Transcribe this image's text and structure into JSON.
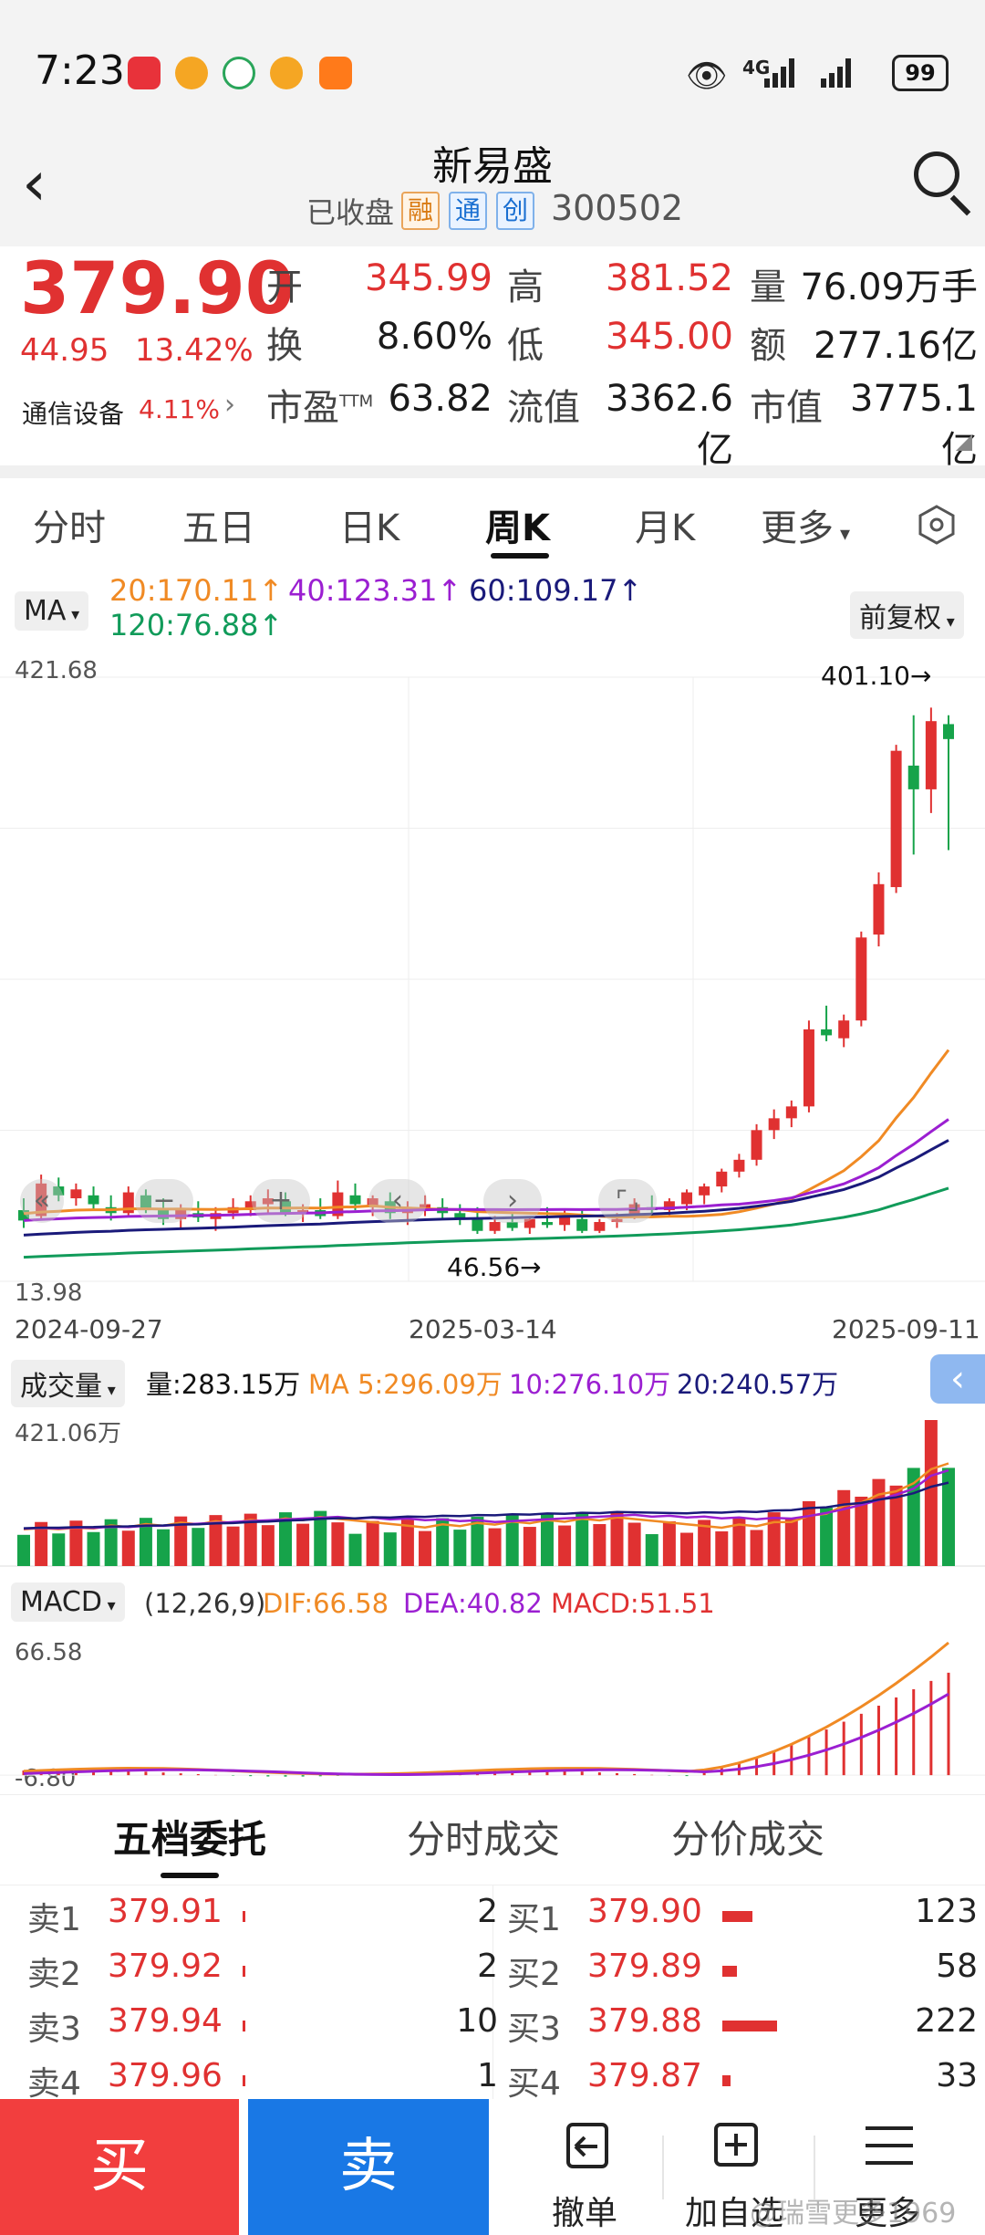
{
  "status_bar": {
    "time": "7:23",
    "battery": "99",
    "network": "4G",
    "icons": [
      "huawei-app-icon",
      "weibo-icon",
      "browser-icon",
      "weibo-icon-2",
      "orange-app-icon",
      "eye-icon",
      "signal-icon",
      "battery-icon"
    ]
  },
  "header": {
    "name": "新易盛",
    "market_status": "已收盘",
    "tags": [
      "融",
      "通",
      "创"
    ],
    "code": "300502"
  },
  "quote": {
    "price": "379.90",
    "change": "44.95",
    "change_pct": "13.42%",
    "industry": "通信设备",
    "industry_pct": "4.11%",
    "open_label": "开",
    "open": "345.99",
    "high_label": "高",
    "high": "381.52",
    "volume_label": "量",
    "volume": "76.09万手",
    "turnover_label": "换",
    "turnover": "8.60%",
    "low_label": "低",
    "low": "345.00",
    "amount_label": "额",
    "amount": "277.16亿",
    "pe_label": "市盈",
    "pe_sup": "TTM",
    "pe": "63.82",
    "float_cap_label": "流值",
    "float_cap": "3362.6亿",
    "market_cap_label": "市值",
    "market_cap": "3775.1亿"
  },
  "chart_tabs": [
    "分时",
    "五日",
    "日K",
    "周K",
    "月K",
    "更多"
  ],
  "active_tab": "周K",
  "ma_panel": {
    "selector": "MA",
    "ma20": "20:170.11",
    "ma40": "40:123.31",
    "ma60": "60:109.17",
    "ma120": "120:76.88",
    "adjust": "前复权"
  },
  "kline_axis": {
    "y_top": "421.68",
    "y_bottom": "13.98",
    "max_label": "401.10",
    "min_label": "46.56",
    "dates": [
      "2024-09-27",
      "2025-03-14",
      "2025-09-11"
    ]
  },
  "volume_panel": {
    "selector": "成交量",
    "vol": "量:283.15万",
    "ma5": "MA 5:296.09万",
    "ma10": "10:276.10万",
    "ma20": "20:240.57万",
    "y_top": "421.06万"
  },
  "macd_panel": {
    "selector": "MACD",
    "params": "(12,26,9)",
    "dif": "DIF:66.58",
    "dea": "DEA:40.82",
    "macd": "MACD:51.51",
    "y_top": "66.58",
    "y_bottom": "-6.80"
  },
  "chart_data": {
    "type": "candlestick",
    "frequency": "weekly",
    "x_range": [
      "2024-09-27",
      "2025-09-11"
    ],
    "ylim": [
      13.98,
      421.68
    ],
    "ohlc": [
      [
        62,
        70,
        50,
        55
      ],
      [
        58,
        86,
        55,
        80
      ],
      [
        78,
        84,
        68,
        72
      ],
      [
        70,
        80,
        65,
        76
      ],
      [
        72,
        78,
        62,
        66
      ],
      [
        64,
        72,
        55,
        60
      ],
      [
        60,
        78,
        58,
        74
      ],
      [
        72,
        76,
        60,
        62
      ],
      [
        62,
        70,
        52,
        56
      ],
      [
        56,
        66,
        50,
        62
      ],
      [
        60,
        68,
        54,
        57
      ],
      [
        56,
        64,
        48,
        60
      ],
      [
        60,
        70,
        56,
        64
      ],
      [
        62,
        72,
        58,
        68
      ],
      [
        66,
        76,
        60,
        70
      ],
      [
        68,
        74,
        58,
        60
      ],
      [
        60,
        66,
        54,
        62
      ],
      [
        62,
        70,
        56,
        58
      ],
      [
        58,
        82,
        56,
        74
      ],
      [
        72,
        80,
        62,
        66
      ],
      [
        64,
        72,
        58,
        70
      ],
      [
        68,
        74,
        56,
        60
      ],
      [
        60,
        68,
        52,
        64
      ],
      [
        62,
        72,
        58,
        66
      ],
      [
        64,
        70,
        56,
        60
      ],
      [
        60,
        66,
        52,
        56
      ],
      [
        56,
        64,
        46,
        48
      ],
      [
        48,
        58,
        46,
        54
      ],
      [
        54,
        60,
        48,
        50
      ],
      [
        50,
        58,
        46,
        56
      ],
      [
        54,
        64,
        50,
        52
      ],
      [
        52,
        62,
        48,
        58
      ],
      [
        56,
        62,
        46.56,
        48
      ],
      [
        48,
        56,
        46.56,
        54
      ],
      [
        54,
        60,
        50,
        56
      ],
      [
        58,
        70,
        56,
        66
      ],
      [
        64,
        72,
        58,
        62
      ],
      [
        62,
        70,
        58,
        68
      ],
      [
        66,
        76,
        62,
        74
      ],
      [
        72,
        80,
        66,
        78
      ],
      [
        78,
        90,
        74,
        88
      ],
      [
        88,
        100,
        84,
        96
      ],
      [
        96,
        120,
        92,
        116
      ],
      [
        116,
        130,
        110,
        124
      ],
      [
        124,
        136,
        118,
        132
      ],
      [
        132,
        190,
        128,
        184
      ],
      [
        184,
        200,
        176,
        180
      ],
      [
        178,
        194,
        172,
        190
      ],
      [
        190,
        250,
        186,
        246
      ],
      [
        248,
        290,
        240,
        282
      ],
      [
        280,
        376,
        276,
        372
      ],
      [
        362,
        396,
        302,
        346
      ],
      [
        346,
        401.1,
        330,
        392
      ],
      [
        390,
        396,
        305,
        379.9
      ]
    ],
    "ma_lines": {
      "ma20_last": 170.11,
      "ma40_last": 123.31,
      "ma60_last": 109.17,
      "ma120_last": 76.88
    },
    "volume": {
      "unit": "万",
      "ylim": [
        0,
        421.06
      ],
      "last": 283.15,
      "ma5_last": 296.09,
      "ma10_last": 276.1,
      "ma20_last": 240.57
    },
    "macd": {
      "params": "12,26,9",
      "ylim": [
        -6.8,
        66.58
      ],
      "dif_last": 66.58,
      "dea_last": 40.82,
      "macd_last": 51.51
    }
  },
  "order_tabs": [
    "五档委托",
    "分时成交",
    "分价成交"
  ],
  "asks": [
    {
      "label": "卖1",
      "price": "379.91",
      "qty": "2",
      "bar": 0.01
    },
    {
      "label": "卖2",
      "price": "379.92",
      "qty": "2",
      "bar": 0.01
    },
    {
      "label": "卖3",
      "price": "379.94",
      "qty": "10",
      "bar": 0.03
    },
    {
      "label": "卖4",
      "price": "379.96",
      "qty": "1",
      "bar": 0.01
    }
  ],
  "bids": [
    {
      "label": "买1",
      "price": "379.90",
      "qty": "123",
      "bar": 0.55
    },
    {
      "label": "买2",
      "price": "379.89",
      "qty": "58",
      "bar": 0.26
    },
    {
      "label": "买3",
      "price": "379.88",
      "qty": "222",
      "bar": 1.0
    },
    {
      "label": "买4",
      "price": "379.87",
      "qty": "33",
      "bar": 0.15
    }
  ],
  "bottom_bar": {
    "buy": "买",
    "sell": "卖",
    "cancel": "撤单",
    "add_watch": "加自选",
    "more": "更多"
  },
  "watermark": "@瑞雪更多1969",
  "colors": {
    "up": "#e03131",
    "down": "#16a34a",
    "ma20": "#f08a24",
    "ma40": "#9b1fd1",
    "ma60": "#1a1a7a",
    "ma120": "#119b5a",
    "sell_blue": "#1978e5"
  }
}
